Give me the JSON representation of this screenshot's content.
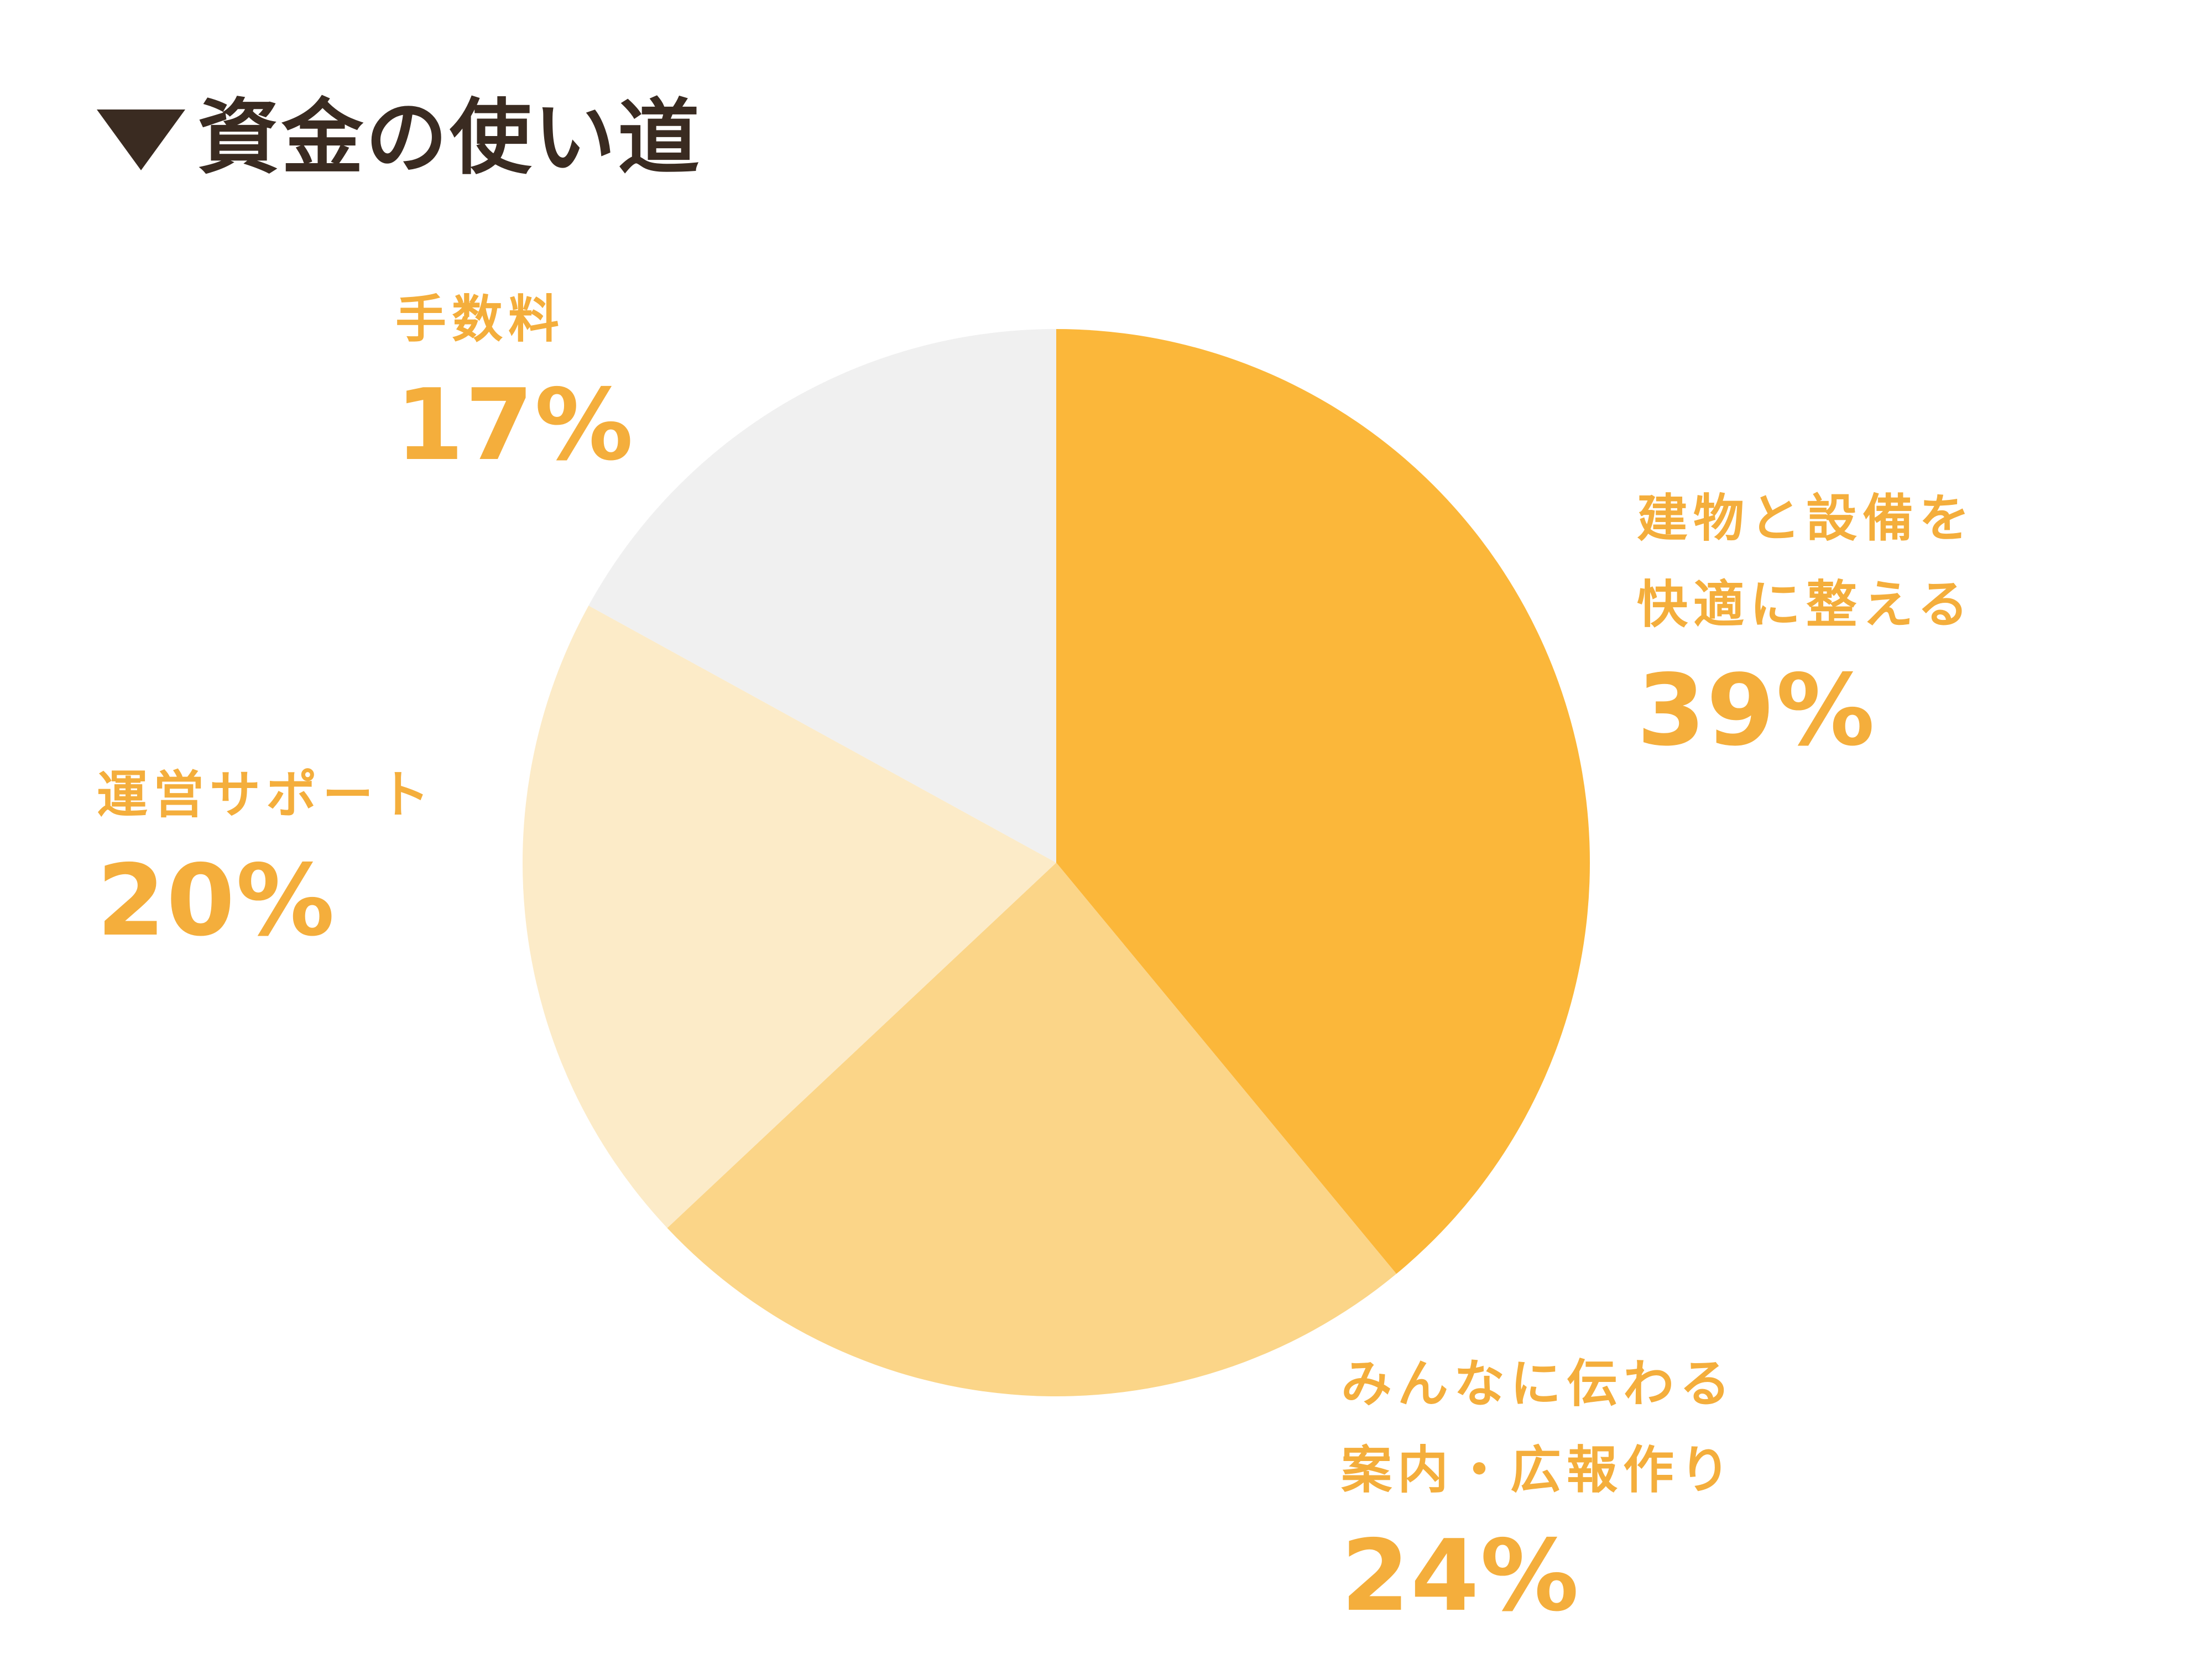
{
  "chart_data": {
    "type": "pie",
    "title": "資金の使い道",
    "slices": [
      {
        "label_lines": [
          "建物と設備を",
          "快適に整える"
        ],
        "value": 39,
        "display": "39%",
        "color": "#FBB73A"
      },
      {
        "label_lines": [
          "みんなに伝わる",
          "案内・広報作り"
        ],
        "value": 24,
        "display": "24%",
        "color": "#FBD588"
      },
      {
        "label_lines": [
          "運営サポート"
        ],
        "value": 20,
        "display": "20%",
        "color": "#FCEBC8"
      },
      {
        "label_lines": [
          "手数料"
        ],
        "value": 17,
        "display": "17%",
        "color": "#F0F0F0"
      }
    ],
    "start": "12 o'clock",
    "direction": "clockwise",
    "legend": "none",
    "label_color": "#F4AE3C",
    "title_color": "#3A2B21"
  }
}
